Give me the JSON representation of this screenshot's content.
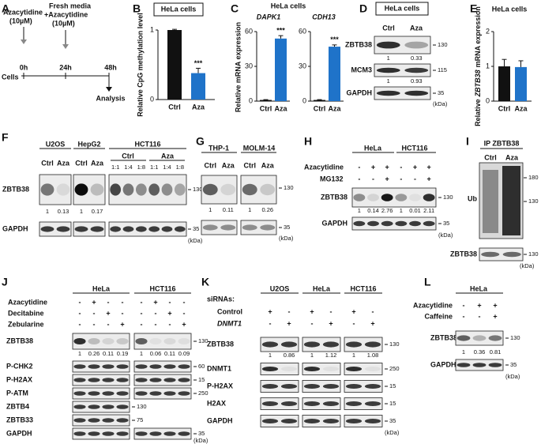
{
  "A": {
    "letter": "A",
    "drug": "Azacytidine",
    "dose": "(10µM)",
    "fresh": "Fresh media",
    "drug2": "+Azacytidine",
    "dose2": "(10µM)",
    "cells": "Cells",
    "times": [
      "0h",
      "24h",
      "48h"
    ],
    "analysis": "Analysis"
  },
  "B": {
    "letter": "B",
    "cell": "HeLa cells",
    "ylabel": "Relative CpG methylation level",
    "categories": [
      "Ctrl",
      "Aza"
    ],
    "values": [
      1,
      0.38
    ],
    "errors": [
      0.01,
      0.07
    ],
    "colors": [
      "#111111",
      "#1f73c9"
    ],
    "ylim": [
      0,
      1
    ],
    "yticks": [
      0,
      1
    ],
    "sig": "***"
  },
  "C": {
    "letter": "C",
    "cell": "HeLa cells",
    "ylabel": "Relative mRNA expression",
    "colors": [
      "#111111",
      "#1f73c9"
    ],
    "charts": [
      {
        "gene": "DAPK1",
        "categories": [
          "Ctrl",
          "Aza"
        ],
        "values": [
          1,
          54
        ],
        "errors": [
          0.3,
          2.5
        ],
        "ylim": [
          0,
          60
        ],
        "yticks": [
          0,
          30,
          60
        ],
        "sig": "***"
      },
      {
        "gene": "CDH13",
        "categories": [
          "Ctrl",
          "Aza"
        ],
        "values": [
          1,
          47
        ],
        "errors": [
          0.3,
          1.5
        ],
        "ylim": [
          0,
          60
        ],
        "yticks": [
          0,
          30,
          60
        ],
        "sig": "***"
      }
    ]
  },
  "D": {
    "letter": "D",
    "cell": "HeLa cells",
    "lanes": [
      "Ctrl",
      "Aza"
    ],
    "rows": [
      {
        "label": "ZBTB38",
        "marker": "130",
        "quant": [
          "1",
          "0.33"
        ]
      },
      {
        "label": "MCM3",
        "marker": "115",
        "quant": [
          "1",
          "0.93"
        ]
      },
      {
        "label": "GAPDH",
        "marker": "35"
      }
    ],
    "unit": "(kDa)"
  },
  "E": {
    "letter": "E",
    "cell": "HeLa cells",
    "ylabel": [
      "Relative",
      "ZBTB38",
      "mRNA expression"
    ],
    "colors": [
      "#111111",
      "#1f73c9"
    ],
    "chart": {
      "categories": [
        "Ctrl",
        "Aza"
      ],
      "values": [
        1,
        0.98
      ],
      "errors": [
        0.2,
        0.18
      ],
      "ylim": [
        0,
        2
      ],
      "yticks": [
        0,
        1,
        2
      ]
    }
  },
  "F": {
    "letter": "F",
    "groups": [
      {
        "name": "U2OS",
        "lanes": [
          "Ctrl",
          "Aza"
        ],
        "quant": [
          "1",
          "0.13"
        ]
      },
      {
        "name": "HepG2",
        "lanes": [
          "Ctrl",
          "Aza"
        ],
        "quant": [
          "1",
          "0.17"
        ]
      },
      {
        "name": "HCT116",
        "subgroups": [
          "Ctrl",
          "Aza"
        ],
        "ratios": [
          "1:1",
          "1:4",
          "1:8",
          "1:1",
          "1:4",
          "1:8"
        ]
      }
    ],
    "rows": [
      "ZBTB38",
      "GAPDH"
    ],
    "markers": [
      "130",
      "35"
    ],
    "unit": "(kDa)"
  },
  "G": {
    "letter": "G",
    "groups": [
      {
        "name": "THP-1",
        "lanes": [
          "Ctrl",
          "Aza"
        ],
        "quant": [
          "1",
          "0.11"
        ]
      },
      {
        "name": "MOLM-14",
        "lanes": [
          "Ctrl",
          "Aza"
        ],
        "quant": [
          "1",
          "0.26"
        ]
      }
    ],
    "markers": [
      "130",
      "35"
    ],
    "unit": "(kDa)"
  },
  "H": {
    "letter": "H",
    "groups": [
      "HeLa",
      "HCT116"
    ],
    "treatments": [
      {
        "name": "Azacytidine",
        "signs": [
          "-",
          "+",
          "+",
          "-",
          "+",
          "+"
        ]
      },
      {
        "name": "MG132",
        "signs": [
          "-",
          "-",
          "+",
          "-",
          "-",
          "+"
        ]
      }
    ],
    "rows": [
      {
        "label": "ZBTB38",
        "marker": "130",
        "quant": [
          "1",
          "0.14",
          "2.76",
          "1",
          "0.01",
          "2.11"
        ]
      },
      {
        "label": "GAPDH",
        "marker": "35"
      }
    ],
    "unit": "(kDa)"
  },
  "I": {
    "letter": "I",
    "title": "IP ZBTB38",
    "lanes": [
      "Ctrl",
      "Aza"
    ],
    "ub": "Ub",
    "ub_markers": [
      "180",
      "130"
    ],
    "row": "ZBTB38",
    "marker": "130",
    "unit": "(kDa)"
  },
  "J": {
    "letter": "J",
    "groups": [
      "HeLa",
      "HCT116"
    ],
    "treatments": [
      {
        "name": "Azacytidine",
        "signs": [
          "-",
          "+",
          "-",
          "-",
          "-",
          "+",
          "-",
          "-"
        ]
      },
      {
        "name": "Decitabine",
        "signs": [
          "-",
          "-",
          "+",
          "-",
          "-",
          "-",
          "+",
          "-"
        ]
      },
      {
        "name": "Zebularine",
        "signs": [
          "-",
          "-",
          "-",
          "+",
          "-",
          "-",
          "-",
          "+"
        ]
      }
    ],
    "rows": [
      {
        "label": "ZBTB38",
        "marker": "130",
        "quant": [
          "1",
          "0.26",
          "0.11",
          "0.19",
          "1",
          "0.06",
          "0.11",
          "0.09"
        ]
      },
      {
        "label": "P-CHK2",
        "marker": "60"
      },
      {
        "label": "P-H2AX",
        "marker": "15"
      },
      {
        "label": "P-ATM",
        "marker": "250"
      },
      {
        "label": "ZBTB4",
        "marker": "130"
      },
      {
        "label": "ZBTB33",
        "marker": "75"
      },
      {
        "label": "GAPDH",
        "marker": "35"
      }
    ],
    "unit": "(kDa)"
  },
  "K": {
    "letter": "K",
    "prefix": "siRNAs:",
    "groups": [
      "U2OS",
      "HeLa",
      "HCT116"
    ],
    "treatments": [
      {
        "name": "Control",
        "signs": [
          "+",
          "-",
          "+",
          "-",
          "+",
          "-"
        ]
      },
      {
        "name": "DNMT1",
        "signs": [
          "-",
          "+",
          "-",
          "+",
          "-",
          "+"
        ]
      }
    ],
    "rows": [
      {
        "label": "ZBTB38",
        "marker": "130",
        "quant": [
          "1",
          "0.86",
          "1",
          "1.12",
          "1",
          "1.08"
        ]
      },
      {
        "label": "DNMT1",
        "marker": "250"
      },
      {
        "label": "P-H2AX",
        "marker": "15"
      },
      {
        "label": "H2AX",
        "marker": "15"
      },
      {
        "label": "GAPDH",
        "marker": "35"
      }
    ],
    "unit": "(kDa)"
  },
  "L": {
    "letter": "L",
    "group": "HeLa",
    "treatments": [
      {
        "name": "Azacytidine",
        "signs": [
          "-",
          "+",
          "+"
        ]
      },
      {
        "name": "Caffeine",
        "signs": [
          "-",
          "-",
          "+"
        ]
      }
    ],
    "rows": [
      {
        "label": "ZBTB38",
        "marker": "130",
        "quant": [
          "1",
          "0.36",
          "0.81"
        ]
      },
      {
        "label": "GAPDH",
        "marker": "35"
      }
    ],
    "unit": "(kDa)"
  }
}
